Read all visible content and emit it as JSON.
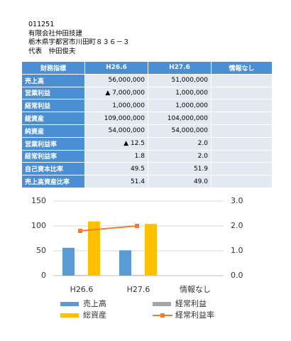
{
  "header": {
    "lines": [
      "011251",
      "有限会社仲田技建",
      "栃木県宇都宮市川田町８３６－３",
      "代表　仲田俊夫"
    ]
  },
  "table": {
    "columns": [
      "財務指標",
      "H26.6",
      "H27.6",
      "情報なし"
    ],
    "rows": [
      [
        "売上高",
        "56,000,000",
        "51,000,000"
      ],
      [
        "営業利益",
        "▲ 7,000,000",
        "1,000,000"
      ],
      [
        "経常利益",
        "1,000,000",
        "1,000,000"
      ],
      [
        "総資産",
        "109,000,000",
        "104,000,000"
      ],
      [
        "純資産",
        "54,000,000",
        "54,000,000"
      ],
      [
        "営業利益率",
        "▲ 12.5",
        "2.0"
      ],
      [
        "経常利益率",
        "1.8",
        "2.0"
      ],
      [
        "自己資本比率",
        "49.5",
        "51.9"
      ],
      [
        "売上高資産比率",
        "51.4",
        "49.0"
      ]
    ]
  },
  "chart_data": {
    "type": "bar",
    "categories": [
      "H26.6",
      "H27.6",
      "情報なし"
    ],
    "series": [
      {
        "name": "売上高",
        "color": "#5b9bd5",
        "values": [
          56,
          51,
          null
        ]
      },
      {
        "name": "経常利益",
        "color": "#a5a5a5",
        "values": [
          1,
          1,
          null
        ]
      },
      {
        "name": "総資産",
        "color": "#ffc000",
        "values": [
          109,
          104,
          null
        ]
      },
      {
        "name": "経常利益率",
        "color": "#ed7d31",
        "type": "line",
        "axis": "y2",
        "values": [
          1.8,
          2.0,
          null
        ]
      }
    ],
    "ylim": [
      0,
      150
    ],
    "yticks": [
      0,
      50,
      100,
      150
    ],
    "y2lim": [
      0,
      3
    ],
    "y2ticks": [
      {
        "value": 0,
        "label": "0.0"
      },
      {
        "value": 1,
        "label": "1.0"
      },
      {
        "value": 2,
        "label": "2.0"
      },
      {
        "value": 3,
        "label": "3.0"
      }
    ],
    "grid": true
  }
}
